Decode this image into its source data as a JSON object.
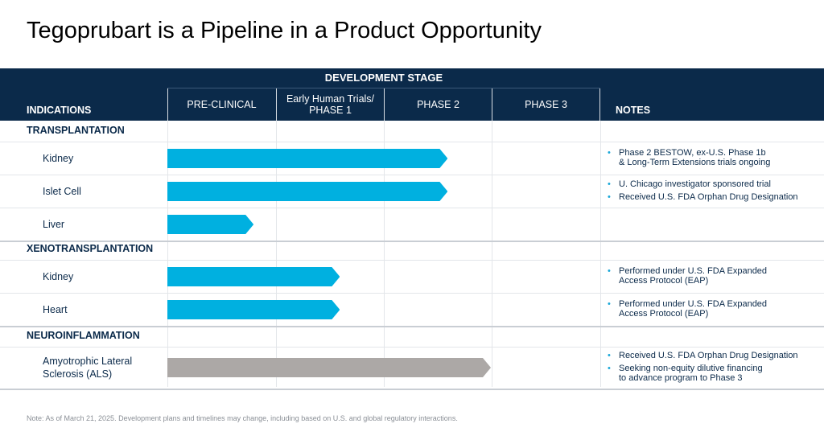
{
  "title": "Tegoprubart is a Pipeline in a Product Opportunity",
  "header": {
    "indications": "INDICATIONS",
    "development_stage": "DEVELOPMENT STAGE",
    "notes": "NOTES",
    "stages": [
      "PRE-CLINICAL",
      "Early Human Trials/\nPHASE 1",
      "PHASE 2",
      "PHASE 3"
    ]
  },
  "colors": {
    "navy": "#0b2a4a",
    "active_arrow": "#00b0e0",
    "inactive_arrow": "#aca8a6",
    "bullet": "#1aa7d8"
  },
  "sections": [
    {
      "name": "TRANSPLANTATION",
      "rows": [
        {
          "label": "Kidney",
          "progress_stages": 2.6,
          "status": "active",
          "notes": [
            "Phase 2 BESTOW, ex-U.S. Phase 1b\n& Long-Term Extensions trials ongoing"
          ]
        },
        {
          "label": "Islet Cell",
          "progress_stages": 2.6,
          "status": "active",
          "notes": [
            "U. Chicago investigator sponsored trial",
            "Received U.S. FDA Orphan Drug Designation"
          ]
        },
        {
          "label": "Liver",
          "progress_stages": 0.8,
          "status": "active",
          "notes": []
        }
      ]
    },
    {
      "name": "XENOTRANSPLANTATION",
      "rows": [
        {
          "label": "Kidney",
          "progress_stages": 1.6,
          "status": "active",
          "notes": [
            "Performed under U.S. FDA Expanded\nAccess Protocol (EAP)"
          ]
        },
        {
          "label": "Heart",
          "progress_stages": 1.6,
          "status": "active",
          "notes": [
            "Performed under U.S. FDA Expanded\nAccess Protocol (EAP)"
          ]
        }
      ]
    },
    {
      "name": "NEUROINFLAMMATION",
      "rows": [
        {
          "label": "Amyotrophic Lateral\nSclerosis (ALS)",
          "progress_stages": 3.0,
          "status": "inactive",
          "notes": [
            "Received U.S. FDA Orphan Drug Designation",
            "Seeking non-equity dilutive financing\nto advance program to Phase 3"
          ]
        }
      ]
    }
  ],
  "footnote": "Note: As of March 21, 2025. Development plans and timelines may change, including based on U.S. and global regulatory interactions."
}
